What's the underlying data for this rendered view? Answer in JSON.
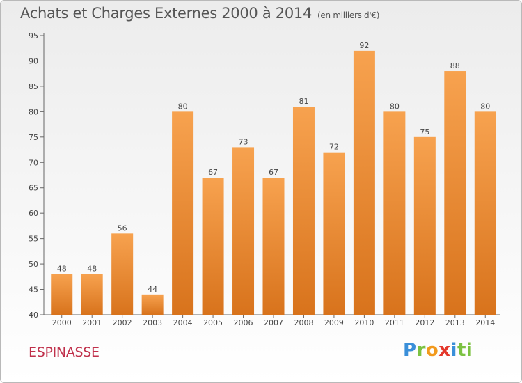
{
  "header": {
    "title": "Achats et Charges Externes 2000 à 2014",
    "unit": "(en milliers d'€)"
  },
  "footer": {
    "commune": "ESPINASSE",
    "logo_letters": [
      "P",
      "r",
      "o",
      "x",
      "i",
      "ti"
    ]
  },
  "colors": {
    "bar_top": "#f7a24f",
    "bar_bottom": "#d8731c",
    "commune_text": "#c0304b"
  },
  "chart_data": {
    "type": "bar",
    "title": "Achats et Charges Externes 2000 à 2014",
    "subtitle": "(en milliers d'€)",
    "categories": [
      "2000",
      "2001",
      "2002",
      "2003",
      "2004",
      "2005",
      "2006",
      "2007",
      "2008",
      "2009",
      "2010",
      "2011",
      "2012",
      "2013",
      "2014"
    ],
    "values": [
      48,
      48,
      56,
      44,
      80,
      67,
      73,
      67,
      81,
      72,
      92,
      80,
      75,
      88,
      80
    ],
    "ylim": [
      40,
      95
    ],
    "yticks": [
      40,
      45,
      50,
      55,
      60,
      65,
      70,
      75,
      80,
      85,
      90,
      95
    ],
    "grid": false,
    "data_labels": true
  }
}
